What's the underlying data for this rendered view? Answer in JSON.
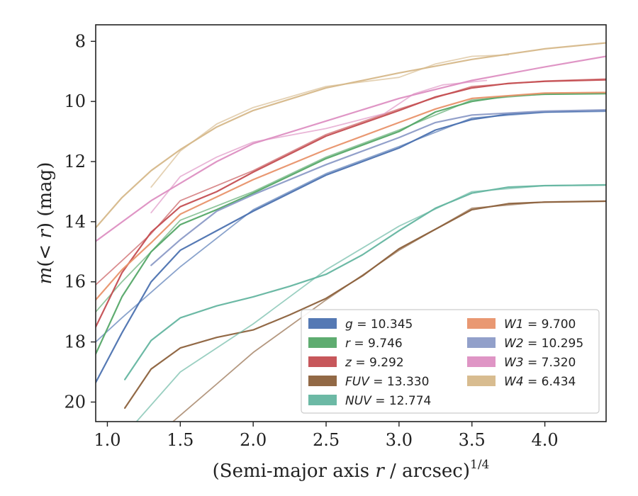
{
  "chart_data": {
    "type": "line",
    "xlabel": "(Semi-major axis r / arcsec)^{1/4}",
    "ylabel": "m(< r) (mag)",
    "xlim": [
      0.92,
      4.42
    ],
    "ylim": [
      20.65,
      7.45
    ],
    "y_inverted": true,
    "grid": false,
    "legend_position": "lower-right",
    "x_ticks": [
      "1.0",
      "1.5",
      "2.0",
      "2.5",
      "3.0",
      "3.5",
      "4.0"
    ],
    "y_ticks": [
      "8",
      "10",
      "12",
      "14",
      "16",
      "18",
      "20"
    ],
    "series": [
      {
        "name": "g = 10.345",
        "label_var": "g",
        "label_val": "10.345",
        "color": "#4c72b0",
        "lines": [
          [
            [
              0.92,
              19.35
            ],
            [
              1.1,
              17.7
            ],
            [
              1.3,
              16.0
            ],
            [
              1.5,
              14.95
            ],
            [
              1.75,
              14.3
            ],
            [
              2.0,
              13.65
            ],
            [
              2.5,
              12.45
            ],
            [
              2.75,
              12.0
            ],
            [
              3.0,
              11.55
            ],
            [
              3.25,
              10.95
            ],
            [
              3.5,
              10.6
            ],
            [
              3.75,
              10.42
            ],
            [
              4.0,
              10.35
            ],
            [
              4.42,
              10.3
            ]
          ],
          [
            [
              0.92,
              18.0
            ],
            [
              1.1,
              17.2
            ],
            [
              1.3,
              16.35
            ],
            [
              1.5,
              15.5
            ],
            [
              2.0,
              13.6
            ],
            [
              2.5,
              12.4
            ],
            [
              3.0,
              11.5
            ],
            [
              3.5,
              10.55
            ],
            [
              4.0,
              10.36
            ],
            [
              4.42,
              10.33
            ]
          ]
        ]
      },
      {
        "name": "r = 9.746",
        "label_var": "r",
        "label_val": "9.746",
        "color": "#55a868",
        "lines": [
          [
            [
              0.92,
              18.4
            ],
            [
              1.1,
              16.5
            ],
            [
              1.3,
              15.0
            ],
            [
              1.5,
              14.1
            ],
            [
              1.75,
              13.6
            ],
            [
              2.0,
              13.05
            ],
            [
              2.5,
              11.9
            ],
            [
              3.0,
              11.0
            ],
            [
              3.25,
              10.35
            ],
            [
              3.5,
              10.0
            ],
            [
              3.75,
              9.82
            ],
            [
              4.0,
              9.76
            ],
            [
              4.42,
              9.74
            ]
          ],
          [
            [
              0.92,
              17.0
            ],
            [
              1.1,
              16.0
            ],
            [
              1.3,
              15.0
            ],
            [
              1.5,
              13.95
            ],
            [
              2.0,
              13.0
            ],
            [
              2.5,
              11.85
            ],
            [
              3.0,
              10.95
            ],
            [
              3.5,
              9.95
            ],
            [
              4.0,
              9.75
            ],
            [
              4.42,
              9.72
            ]
          ]
        ]
      },
      {
        "name": "z = 9.292",
        "label_var": "z",
        "label_val": "9.292",
        "color": "#c44e52",
        "lines": [
          [
            [
              0.92,
              17.5
            ],
            [
              1.1,
              15.7
            ],
            [
              1.3,
              14.35
            ],
            [
              1.5,
              13.5
            ],
            [
              1.75,
              13.0
            ],
            [
              2.0,
              12.35
            ],
            [
              2.5,
              11.15
            ],
            [
              3.0,
              10.3
            ],
            [
              3.25,
              9.85
            ],
            [
              3.5,
              9.55
            ],
            [
              3.75,
              9.4
            ],
            [
              4.0,
              9.33
            ],
            [
              4.42,
              9.28
            ]
          ],
          [
            [
              0.92,
              16.1
            ],
            [
              1.1,
              15.3
            ],
            [
              1.3,
              14.4
            ],
            [
              1.5,
              13.3
            ],
            [
              2.0,
              12.3
            ],
            [
              2.5,
              11.1
            ],
            [
              3.0,
              10.25
            ],
            [
              3.5,
              9.5
            ],
            [
              4.0,
              9.32
            ],
            [
              4.42,
              9.25
            ]
          ]
        ]
      },
      {
        "name": "FUV = 13.330",
        "label_var": "FUV",
        "label_val": "13.330",
        "color": "#8c613c",
        "lines": [
          [
            [
              1.12,
              20.2
            ],
            [
              1.3,
              18.9
            ],
            [
              1.5,
              18.2
            ],
            [
              1.75,
              17.85
            ],
            [
              2.0,
              17.6
            ],
            [
              2.25,
              17.1
            ],
            [
              2.5,
              16.55
            ],
            [
              2.75,
              15.8
            ],
            [
              3.0,
              14.9
            ],
            [
              3.25,
              14.25
            ],
            [
              3.5,
              13.6
            ],
            [
              3.75,
              13.4
            ],
            [
              4.0,
              13.35
            ],
            [
              4.42,
              13.32
            ]
          ],
          [
            [
              1.45,
              20.65
            ],
            [
              1.75,
              19.4
            ],
            [
              2.0,
              18.35
            ],
            [
              2.5,
              16.6
            ],
            [
              3.0,
              14.95
            ],
            [
              3.5,
              13.55
            ],
            [
              4.0,
              13.34
            ],
            [
              4.42,
              13.31
            ]
          ]
        ]
      },
      {
        "name": "NUV = 12.774",
        "label_var": "NUV",
        "label_val": "12.774",
        "color": "#64b5a0",
        "lines": [
          [
            [
              1.12,
              19.25
            ],
            [
              1.3,
              17.95
            ],
            [
              1.5,
              17.2
            ],
            [
              1.75,
              16.8
            ],
            [
              2.0,
              16.5
            ],
            [
              2.25,
              16.15
            ],
            [
              2.5,
              15.75
            ],
            [
              2.75,
              15.1
            ],
            [
              3.0,
              14.3
            ],
            [
              3.25,
              13.55
            ],
            [
              3.5,
              13.05
            ],
            [
              3.75,
              12.85
            ],
            [
              4.0,
              12.8
            ],
            [
              4.42,
              12.78
            ]
          ],
          [
            [
              1.2,
              20.65
            ],
            [
              1.5,
              19.0
            ],
            [
              2.0,
              17.4
            ],
            [
              2.5,
              15.6
            ],
            [
              3.0,
              14.15
            ],
            [
              3.5,
              13.0
            ],
            [
              4.0,
              12.8
            ],
            [
              4.42,
              12.77
            ]
          ]
        ]
      },
      {
        "name": "W1 = 9.700",
        "label_var": "W1",
        "label_val": "9.700",
        "color": "#e8926a",
        "lines": [
          [
            [
              0.92,
              16.6
            ],
            [
              1.1,
              15.6
            ],
            [
              1.3,
              14.7
            ],
            [
              1.5,
              13.75
            ],
            [
              2.0,
              12.6
            ],
            [
              2.5,
              11.6
            ],
            [
              3.0,
              10.7
            ],
            [
              3.25,
              10.25
            ],
            [
              3.5,
              9.9
            ],
            [
              4.0,
              9.72
            ],
            [
              4.42,
              9.7
            ]
          ]
        ]
      },
      {
        "name": "W2 = 10.295",
        "label_var": "W2",
        "label_val": "10.295",
        "color": "#8c9bc7",
        "lines": [
          [
            [
              1.3,
              15.45
            ],
            [
              1.5,
              14.6
            ],
            [
              1.75,
              13.65
            ],
            [
              2.0,
              13.1
            ],
            [
              2.5,
              12.1
            ],
            [
              3.0,
              11.2
            ],
            [
              3.25,
              10.7
            ],
            [
              3.5,
              10.45
            ],
            [
              4.0,
              10.32
            ],
            [
              4.42,
              10.28
            ]
          ]
        ]
      },
      {
        "name": "W3 = 7.320",
        "label_var": "W3",
        "label_val": "7.320",
        "color": "#dd8fc2",
        "lines": [
          [
            [
              0.92,
              14.65
            ],
            [
              1.3,
              13.3
            ],
            [
              1.75,
              12.0
            ],
            [
              2.0,
              11.4
            ],
            [
              2.5,
              10.65
            ],
            [
              3.0,
              9.9
            ],
            [
              3.5,
              9.3
            ],
            [
              4.0,
              8.85
            ],
            [
              4.42,
              8.5
            ]
          ],
          [
            [
              1.3,
              13.7
            ],
            [
              1.5,
              12.5
            ],
            [
              1.75,
              11.85
            ],
            [
              2.0,
              11.35
            ],
            [
              2.5,
              10.9
            ],
            [
              2.9,
              10.4
            ],
            [
              3.1,
              9.75
            ],
            [
              3.3,
              9.45
            ],
            [
              3.6,
              9.3
            ]
          ]
        ]
      },
      {
        "name": "W4 = 6.434",
        "label_var": "W4",
        "label_val": "6.434",
        "color": "#d6b88a",
        "lines": [
          [
            [
              0.92,
              14.2
            ],
            [
              1.1,
              13.2
            ],
            [
              1.3,
              12.3
            ],
            [
              1.5,
              11.6
            ],
            [
              1.75,
              10.85
            ],
            [
              2.0,
              10.3
            ],
            [
              2.5,
              9.55
            ],
            [
              3.0,
              9.05
            ],
            [
              3.5,
              8.6
            ],
            [
              4.0,
              8.25
            ],
            [
              4.42,
              8.05
            ]
          ],
          [
            [
              1.3,
              12.85
            ],
            [
              1.5,
              11.65
            ],
            [
              1.75,
              10.75
            ],
            [
              2.0,
              10.2
            ],
            [
              2.5,
              9.5
            ],
            [
              3.0,
              9.2
            ],
            [
              3.25,
              8.75
            ],
            [
              3.5,
              8.5
            ],
            [
              3.75,
              8.45
            ]
          ]
        ]
      }
    ]
  }
}
